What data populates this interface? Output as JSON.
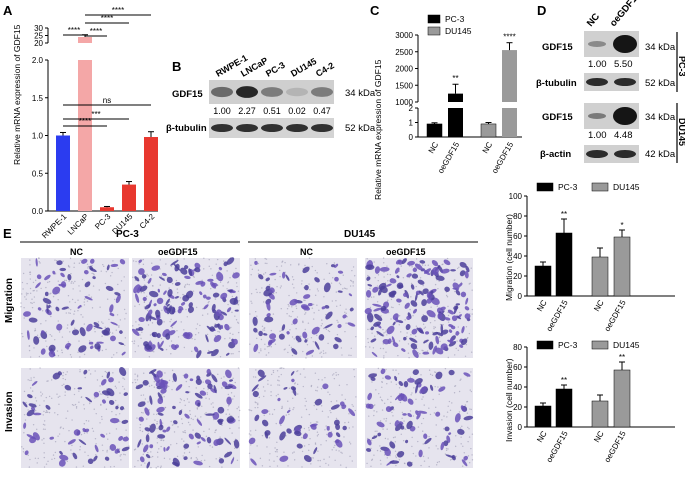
{
  "panels": {
    "A": "A",
    "B": "B",
    "C": "C",
    "D": "D",
    "E": "E"
  },
  "chart_data": [
    {
      "type": "bar",
      "panel": "A",
      "ylabel": "Relative mRNA expression of GDF15",
      "categories": [
        "RWPE-1",
        "LNCaP",
        "PC-3",
        "DU145",
        "C4-2"
      ],
      "values": [
        1.0,
        24.0,
        0.05,
        0.35,
        0.98
      ],
      "errors": [
        0.04,
        1.5,
        0.01,
        0.04,
        0.07
      ],
      "colors": [
        "#2b3cf0",
        "#f4a7a7",
        "#e8382f",
        "#e8382f",
        "#e8382f"
      ],
      "lower_ticks": [
        "0.0",
        "0.5",
        "1.0",
        "1.5",
        "2.0"
      ],
      "upper_ticks": [
        "20",
        "25",
        "30"
      ],
      "comparisons": [
        {
          "label": "****",
          "from": 0,
          "to": 1
        },
        {
          "label": "****",
          "from": 1,
          "to": 2
        },
        {
          "label": "****",
          "from": 1,
          "to": 3
        },
        {
          "label": "****",
          "from": 1,
          "to": 4
        },
        {
          "label": "ns",
          "from": 0,
          "to": 4
        },
        {
          "label": "***",
          "from": 0,
          "to": 3
        },
        {
          "label": "****",
          "from": 0,
          "to": 2
        }
      ]
    },
    {
      "type": "bar",
      "panel": "C",
      "ylabel": "Relative mRNA expression of GDF15",
      "categories": [
        "NC",
        "oeGDF15",
        "NC",
        "oeGDF15"
      ],
      "values": [
        0.9,
        1250,
        0.9,
        2550
      ],
      "errors": [
        0.08,
        280,
        0.1,
        220
      ],
      "series": [
        {
          "name": "PC-3",
          "color": "#000000"
        },
        {
          "name": "DU145",
          "color": "#9a9a9a"
        }
      ],
      "lower_ticks": [
        "0",
        "1",
        "2"
      ],
      "upper_ticks": [
        "1000",
        "1500",
        "2000",
        "2500",
        "3000"
      ],
      "sig": [
        "",
        "**",
        "",
        "****"
      ]
    },
    {
      "type": "bar",
      "panel": "E-migration",
      "ylabel": "Migration (cell number)",
      "categories": [
        "NC",
        "oeGDF15",
        "NC",
        "oeGDF15"
      ],
      "values": [
        30,
        63,
        39,
        59
      ],
      "errors": [
        4,
        14,
        9,
        7
      ],
      "series": [
        {
          "name": "PC-3",
          "color": "#000000"
        },
        {
          "name": "DU145",
          "color": "#9a9a9a"
        }
      ],
      "ylim": [
        0,
        100
      ],
      "yticks": [
        "0",
        "20",
        "40",
        "60",
        "80",
        "100"
      ],
      "sig": [
        "",
        "**",
        "",
        "*"
      ]
    },
    {
      "type": "bar",
      "panel": "E-invasion",
      "ylabel": "Invasion (cell number)",
      "categories": [
        "NC",
        "oeGDF15",
        "NC",
        "oeGDF15"
      ],
      "values": [
        21,
        38,
        26,
        57
      ],
      "errors": [
        3,
        4,
        6,
        8
      ],
      "series": [
        {
          "name": "PC-3",
          "color": "#000000"
        },
        {
          "name": "DU145",
          "color": "#9a9a9a"
        }
      ],
      "ylim": [
        0,
        80
      ],
      "yticks": [
        "0",
        "20",
        "40",
        "60",
        "80"
      ],
      "sig": [
        "",
        "**",
        "",
        "**"
      ]
    }
  ],
  "blotB": {
    "lanes": [
      "RWPE-1",
      "LNCaP",
      "PC-3",
      "DU145",
      "C4-2"
    ],
    "rows": [
      "GDF15",
      "β-tubulin"
    ],
    "values": [
      "1.00",
      "2.27",
      "0.51",
      "0.02",
      "0.47"
    ],
    "kda": [
      "34 kDa",
      "52 kDa"
    ]
  },
  "blotD": {
    "lanes": [
      "NC",
      "oeGDF15"
    ],
    "pc3": {
      "label": "PC-3",
      "rows": [
        "GDF15",
        "β-tubulin"
      ],
      "values": [
        "1.00",
        "5.50"
      ],
      "kda": [
        "34 kDa",
        "52 kDa"
      ]
    },
    "du145": {
      "label": "DU145",
      "rows": [
        "GDF15",
        "β-actin"
      ],
      "values": [
        "1.00",
        "4.48"
      ],
      "kda": [
        "34 kDa",
        "42 kDa"
      ]
    }
  },
  "panelE": {
    "groups": [
      "PC-3",
      "DU145"
    ],
    "conditions": [
      "NC",
      "oeGDF15",
      "NC",
      "oeGDF15"
    ],
    "rows": [
      "Migration",
      "Invasion"
    ]
  }
}
